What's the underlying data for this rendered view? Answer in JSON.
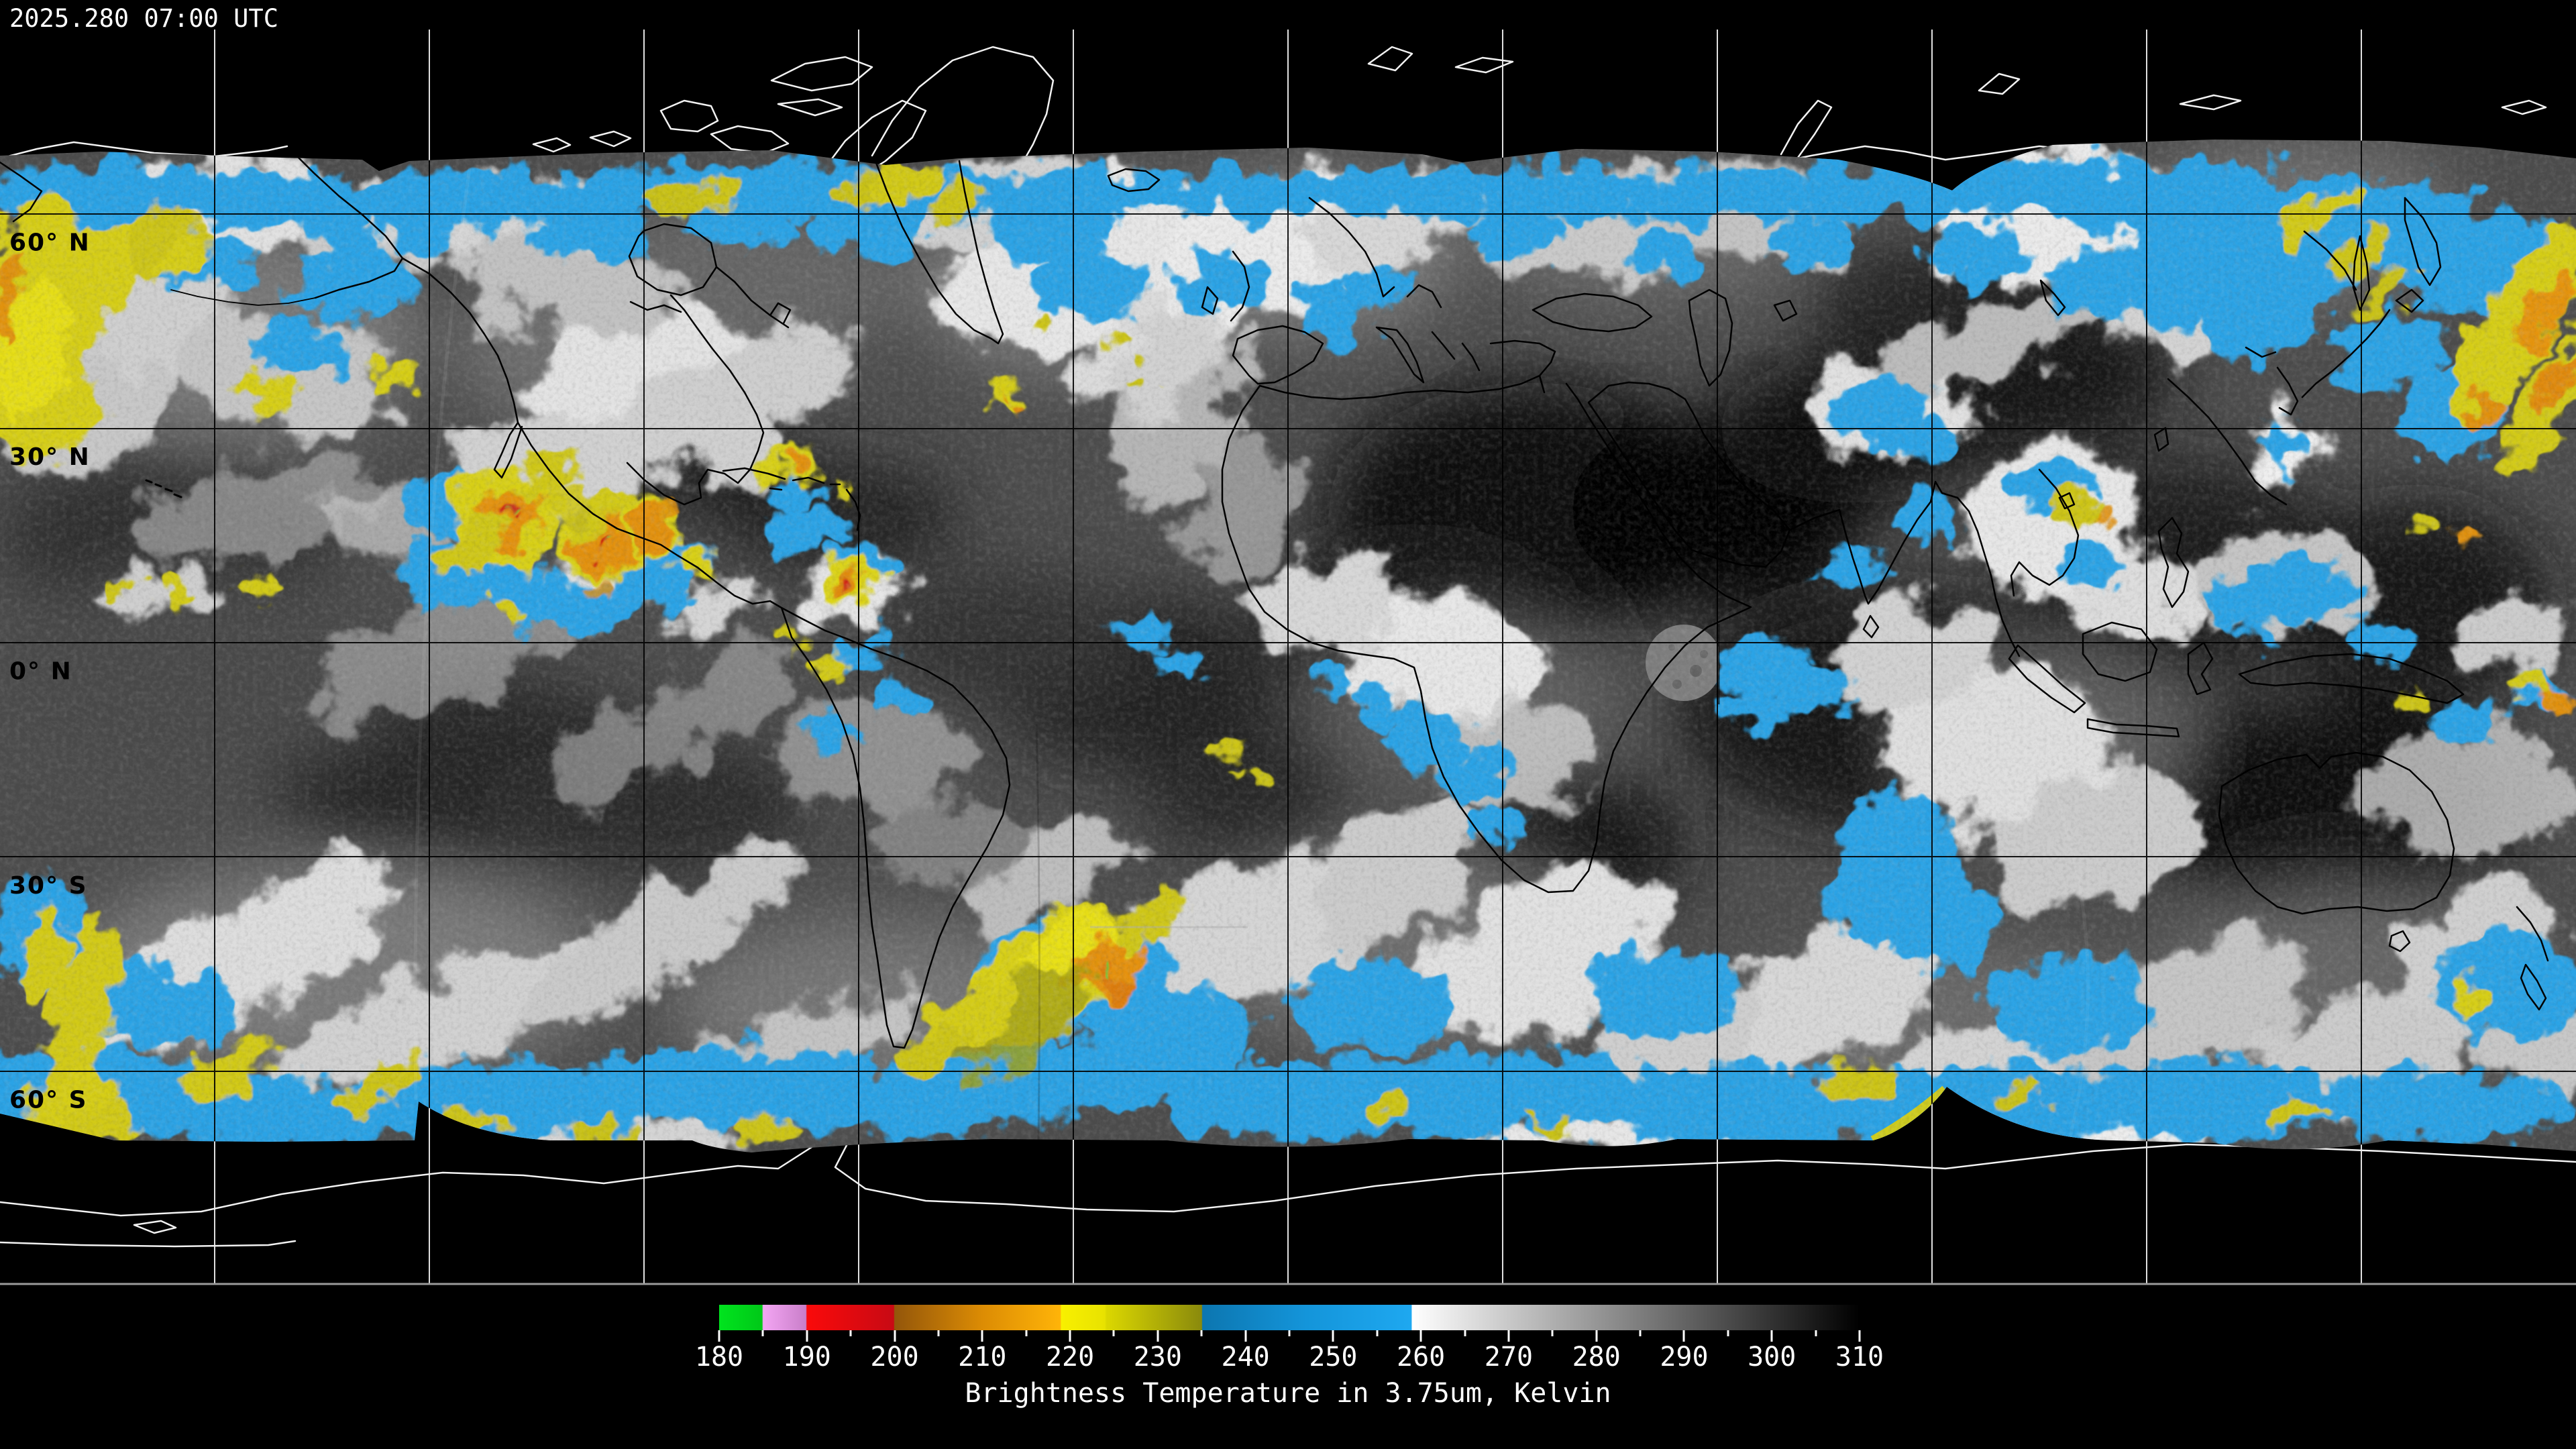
{
  "header": {
    "timestamp": "2025.280 07:00 UTC"
  },
  "map": {
    "projection": "equirectangular-global-satellite-composite",
    "latitude_labels": [
      {
        "label": "60° N",
        "lat": 60
      },
      {
        "label": "30° N",
        "lat": 30
      },
      {
        "label": "0° N",
        "lat": 0
      },
      {
        "label": "30° S",
        "lat": -30
      },
      {
        "label": "60° S",
        "lat": -60
      }
    ],
    "latitude_gridline_spacing_deg": 30,
    "longitude_gridline_spacing_deg": 30,
    "no_data_region_color": "#000000"
  },
  "colorbar": {
    "title": "Brightness Temperature in 3.75um, Kelvin",
    "unit": "Kelvin",
    "wavelength": "3.75um",
    "min": 180,
    "max": 310,
    "major_ticks": [
      180,
      190,
      200,
      210,
      220,
      230,
      240,
      250,
      260,
      270,
      280,
      290,
      300,
      310
    ],
    "minor_ticks": [
      185,
      195,
      205,
      215,
      225,
      235,
      245,
      255,
      265,
      275,
      285,
      295,
      305
    ],
    "stops": [
      {
        "t": 180,
        "c": "#00e41e"
      },
      {
        "t": 184.9,
        "c": "#00c818"
      },
      {
        "t": 185,
        "c": "#f4a6f4"
      },
      {
        "t": 189.9,
        "c": "#c87ec8"
      },
      {
        "t": 190,
        "c": "#fa0a0a"
      },
      {
        "t": 199.9,
        "c": "#c80a14"
      },
      {
        "t": 200,
        "c": "#93560a"
      },
      {
        "t": 210,
        "c": "#dc8c04"
      },
      {
        "t": 218.9,
        "c": "#ffb408"
      },
      {
        "t": 219,
        "c": "#f8f000"
      },
      {
        "t": 224,
        "c": "#e8e200"
      },
      {
        "t": 224.1,
        "c": "#dcd800"
      },
      {
        "t": 235,
        "c": "#8a8a0c"
      },
      {
        "t": 235.1,
        "c": "#0c76b0"
      },
      {
        "t": 247,
        "c": "#1495da"
      },
      {
        "t": 258.9,
        "c": "#1ea8f0"
      },
      {
        "t": 259,
        "c": "#ffffff"
      },
      {
        "t": 310,
        "c": "#000000"
      }
    ]
  }
}
